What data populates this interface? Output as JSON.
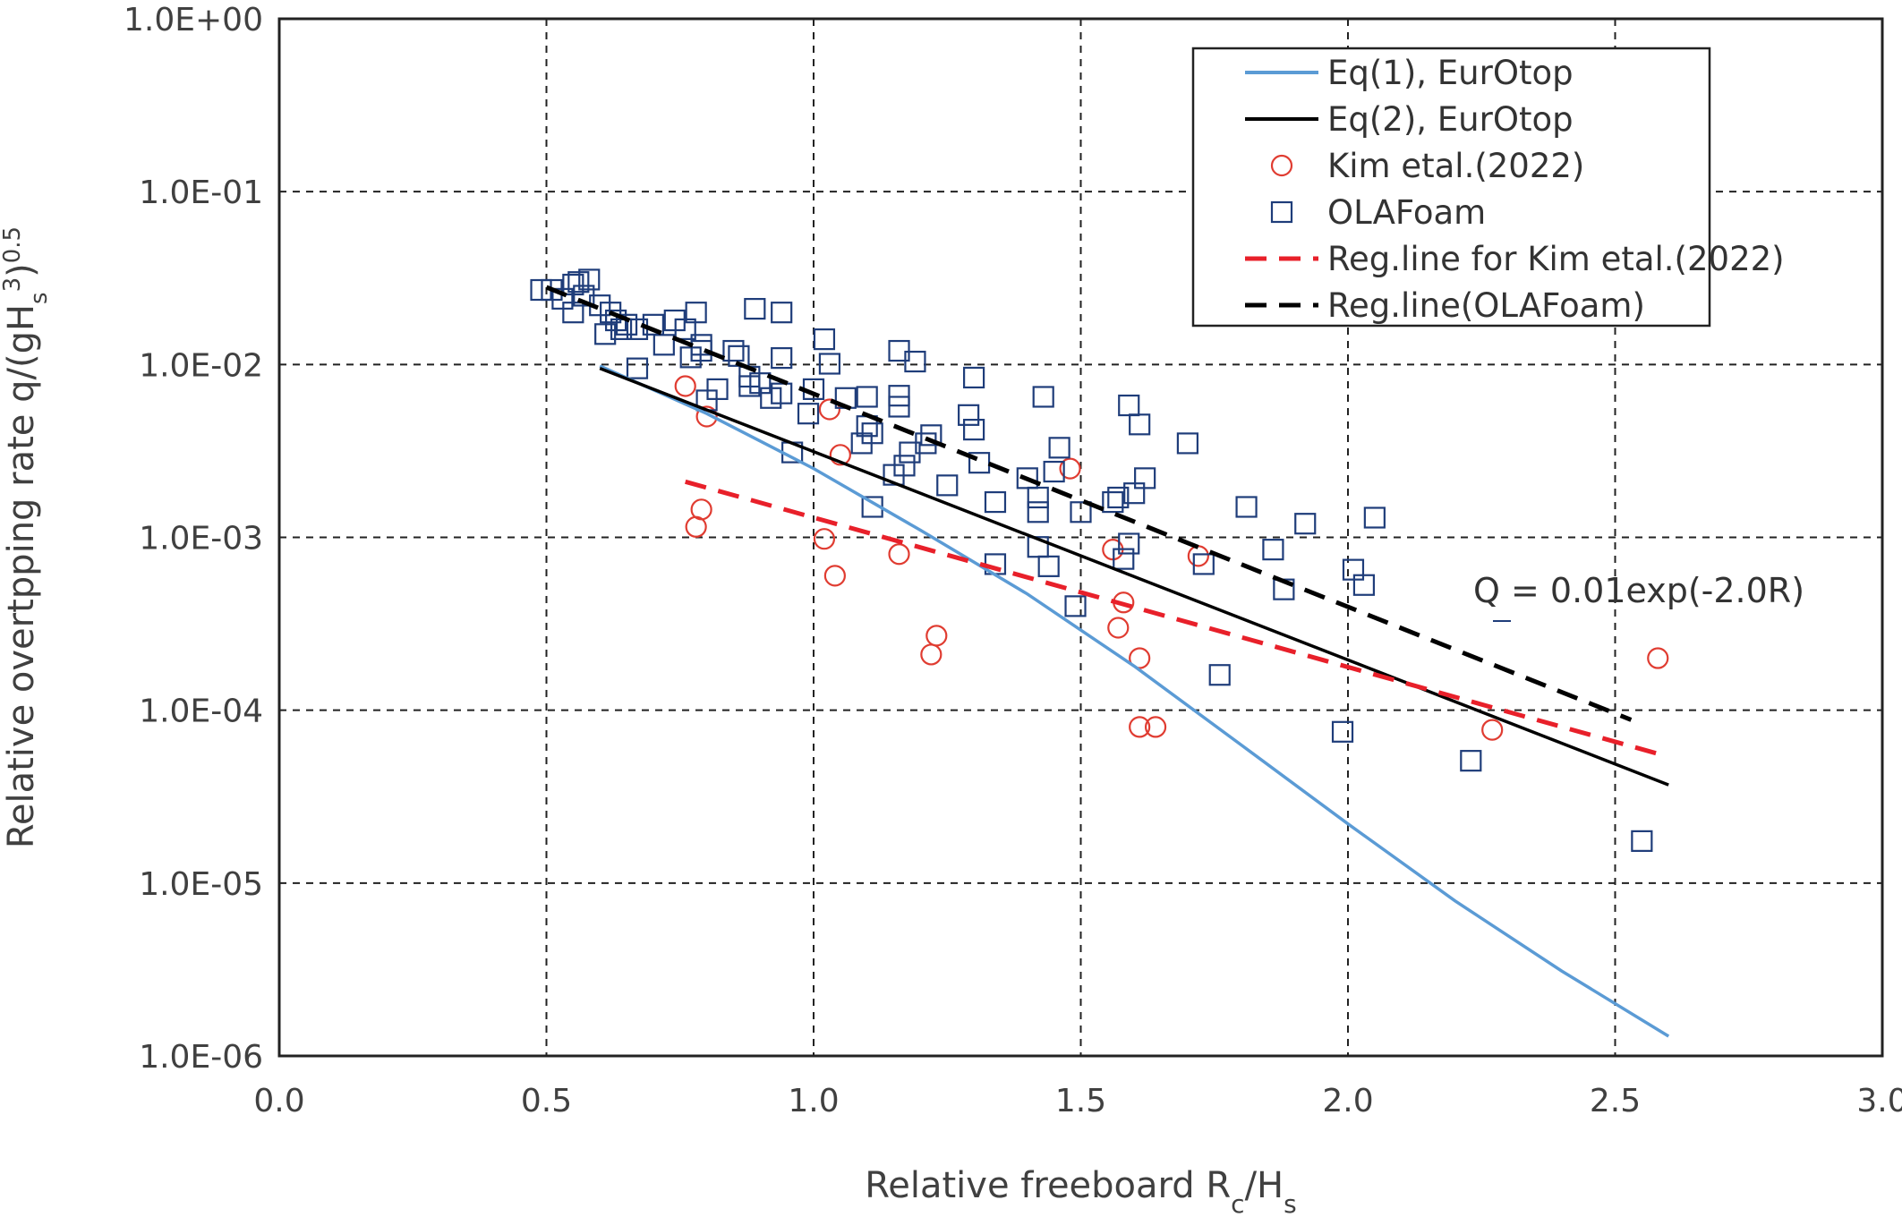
{
  "chart_data": {
    "type": "scatter",
    "xlabel": "Relative freeboard R",
    "xlabel_sub": "c",
    "xlabel_mid": "/H",
    "xlabel_sub2": "s",
    "ylabel": "Relative overtpping rate q/(gH",
    "ylabel_sub": "s",
    "ylabel_sup": "3",
    "ylabel_mid": ")",
    "ylabel_sup2": "0.5",
    "xlim": [
      0,
      3
    ],
    "ylim_log": [
      1e-06,
      1
    ],
    "y_scale": "log",
    "grid": true,
    "legend_position": "top-right",
    "x_ticks": [
      "0.0",
      "0.5",
      "1.0",
      "1.5",
      "2.0",
      "2.5",
      "3.0"
    ],
    "y_ticks": [
      "1.0E-06",
      "1.0E-05",
      "1.0E-04",
      "1.0E-03",
      "1.0E-02",
      "1.0E-01",
      "1.0E+00"
    ],
    "annotation": "Q = 0.01exp(-2.0R)",
    "series": [
      {
        "name": "Eq(1), EurOtop",
        "kind": "line",
        "color": "#5b9bd5",
        "dash": "solid",
        "x": [
          0.6,
          0.8,
          1.0,
          1.2,
          1.4,
          1.6,
          1.8,
          2.0,
          2.2,
          2.4,
          2.6
        ],
        "y": [
          0.0098,
          0.0052,
          0.0025,
          0.0011,
          0.00047,
          0.00018,
          6.3e-05,
          2.2e-05,
          7.9e-06,
          3.1e-06,
          1.3e-06
        ]
      },
      {
        "name": "Eq(2), EurOtop",
        "kind": "line",
        "color": "#000000",
        "dash": "solid",
        "x": [
          0.6,
          2.6
        ],
        "y": [
          0.0095,
          3.7e-05
        ]
      },
      {
        "name": "Kim etal.(2022)",
        "kind": "scatter",
        "marker": "circle",
        "color": "#e03c31",
        "points": [
          [
            0.76,
            0.0075
          ],
          [
            0.8,
            0.005
          ],
          [
            0.78,
            0.00115
          ],
          [
            0.79,
            0.00145
          ],
          [
            1.03,
            0.0055
          ],
          [
            1.05,
            0.003
          ],
          [
            1.02,
            0.00098
          ],
          [
            1.04,
            0.0006
          ],
          [
            1.16,
            0.0008
          ],
          [
            1.23,
            0.00027
          ],
          [
            1.22,
            0.00021
          ],
          [
            1.48,
            0.0025
          ],
          [
            1.56,
            0.00085
          ],
          [
            1.58,
            0.00042
          ],
          [
            1.57,
            0.0003
          ],
          [
            1.61,
            0.0002
          ],
          [
            1.61,
            8e-05
          ],
          [
            1.64,
            8e-05
          ],
          [
            1.72,
            0.00078
          ],
          [
            2.27,
            7.7e-05
          ],
          [
            2.58,
            0.0002
          ]
        ]
      },
      {
        "name": "OLAFoam",
        "kind": "scatter",
        "marker": "square",
        "color": "#1f3d7a",
        "points": [
          [
            0.49,
            0.027
          ],
          [
            0.51,
            0.027
          ],
          [
            0.53,
            0.024
          ],
          [
            0.55,
            0.029
          ],
          [
            0.56,
            0.03
          ],
          [
            0.58,
            0.031
          ],
          [
            0.55,
            0.02
          ],
          [
            0.57,
            0.025
          ],
          [
            0.6,
            0.022
          ],
          [
            0.62,
            0.02
          ],
          [
            0.63,
            0.018
          ],
          [
            0.65,
            0.017
          ],
          [
            0.61,
            0.015
          ],
          [
            0.64,
            0.016
          ],
          [
            0.67,
            0.016
          ],
          [
            0.7,
            0.017
          ],
          [
            0.72,
            0.013
          ],
          [
            0.74,
            0.018
          ],
          [
            0.76,
            0.016
          ],
          [
            0.78,
            0.02
          ],
          [
            0.79,
            0.013
          ],
          [
            0.77,
            0.011
          ],
          [
            0.79,
            0.012
          ],
          [
            0.67,
            0.0095
          ],
          [
            0.8,
            0.0062
          ],
          [
            0.82,
            0.0072
          ],
          [
            0.85,
            0.012
          ],
          [
            0.86,
            0.0112
          ],
          [
            0.88,
            0.0085
          ],
          [
            0.88,
            0.0075
          ],
          [
            0.89,
            0.021
          ],
          [
            0.9,
            0.0078
          ],
          [
            0.92,
            0.0064
          ],
          [
            0.94,
            0.0068
          ],
          [
            0.94,
            0.02
          ],
          [
            0.94,
            0.0109
          ],
          [
            0.96,
            0.0031
          ],
          [
            0.99,
            0.0052
          ],
          [
            1.0,
            0.0072
          ],
          [
            1.02,
            0.014
          ],
          [
            1.03,
            0.0101
          ],
          [
            1.06,
            0.0064
          ],
          [
            1.09,
            0.0035
          ],
          [
            1.1,
            0.0065
          ],
          [
            1.1,
            0.0044
          ],
          [
            1.11,
            0.004
          ],
          [
            1.11,
            0.0015
          ],
          [
            1.15,
            0.0023
          ],
          [
            1.16,
            0.012
          ],
          [
            1.16,
            0.0066
          ],
          [
            1.16,
            0.0057
          ],
          [
            1.17,
            0.0026
          ],
          [
            1.18,
            0.0031
          ],
          [
            1.19,
            0.0104
          ],
          [
            1.21,
            0.0035
          ],
          [
            1.22,
            0.0039
          ],
          [
            1.25,
            0.002
          ],
          [
            1.29,
            0.0051
          ],
          [
            1.3,
            0.0084
          ],
          [
            1.3,
            0.0042
          ],
          [
            1.31,
            0.0027
          ],
          [
            1.34,
            0.0016
          ],
          [
            1.34,
            0.0007
          ],
          [
            1.4,
            0.0022
          ],
          [
            1.42,
            0.0017
          ],
          [
            1.42,
            0.0014
          ],
          [
            1.42,
            0.00088
          ],
          [
            1.43,
            0.0065
          ],
          [
            1.44,
            0.00068
          ],
          [
            1.45,
            0.0024
          ],
          [
            1.46,
            0.0033
          ],
          [
            1.5,
            0.0014
          ],
          [
            1.49,
            0.0004
          ],
          [
            1.56,
            0.0016
          ],
          [
            1.57,
            0.0017
          ],
          [
            1.58,
            0.00075
          ],
          [
            1.59,
            0.00092
          ],
          [
            1.59,
            0.0058
          ],
          [
            1.6,
            0.0018
          ],
          [
            1.61,
            0.0045
          ],
          [
            1.62,
            0.0022
          ],
          [
            1.7,
            0.0035
          ],
          [
            1.73,
            0.0007
          ],
          [
            1.76,
            0.00016
          ],
          [
            1.81,
            0.0015
          ],
          [
            1.86,
            0.00085
          ],
          [
            1.88,
            0.0005
          ],
          [
            1.92,
            0.0012
          ],
          [
            1.99,
            7.5e-05
          ],
          [
            2.01,
            0.00065
          ],
          [
            2.03,
            0.00053
          ],
          [
            2.05,
            0.0013
          ],
          [
            2.23,
            5.1e-05
          ],
          [
            2.55,
            1.75e-05
          ]
        ]
      },
      {
        "name": "Reg.line for Kim etal.(2022)",
        "kind": "line",
        "color": "#e8202a",
        "dash": "dashed",
        "x": [
          0.76,
          2.58
        ],
        "y": [
          0.0021,
          5.6e-05
        ]
      },
      {
        "name": "Reg.line(OLAFoam)",
        "kind": "line",
        "color": "#000000",
        "dash": "dashed",
        "x": [
          0.5,
          2.53
        ],
        "y": [
          0.028,
          8.8e-05
        ]
      }
    ]
  }
}
